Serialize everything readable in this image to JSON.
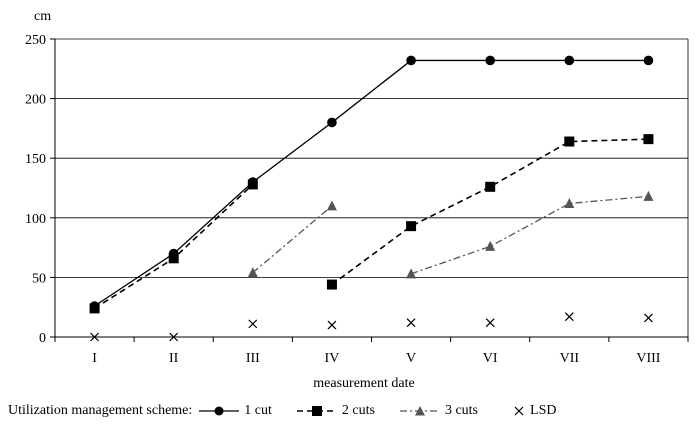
{
  "chart_data": {
    "type": "line",
    "ylabel": "cm",
    "xlabel": "measurement date",
    "categories": [
      "I",
      "II",
      "III",
      "IV",
      "V",
      "VI",
      "VII",
      "VIII"
    ],
    "ylim": [
      0,
      250
    ],
    "yticks": [
      0,
      50,
      100,
      150,
      200,
      250
    ],
    "grid": "horizontal",
    "legend_position": "bottom",
    "legend_title": "Utilization management scheme:",
    "series": [
      {
        "name": "1 cut",
        "marker": "circle",
        "line": "solid",
        "color": "#000000",
        "values": [
          26,
          70,
          130,
          180,
          232,
          232,
          232,
          232
        ]
      },
      {
        "name": "2 cuts",
        "marker": "square",
        "line": "dashed",
        "color": "#000000",
        "values": [
          24,
          66,
          128,
          null,
          null,
          null,
          null,
          null
        ],
        "segments": [
          [
            24,
            66,
            128,
            null,
            null,
            null,
            null,
            null
          ],
          [
            null,
            null,
            null,
            44,
            93,
            126,
            164,
            166
          ]
        ]
      },
      {
        "name": "3 cuts",
        "marker": "triangle",
        "line": "dashdot",
        "color": "#555555",
        "segments": [
          [
            null,
            null,
            54,
            110,
            null,
            null,
            null,
            null
          ],
          [
            null,
            null,
            null,
            null,
            53,
            76,
            112,
            118
          ]
        ]
      },
      {
        "name": "LSD",
        "marker": "x",
        "line": "none",
        "color": "#000000",
        "values": [
          0,
          0,
          11,
          10,
          12,
          12,
          17,
          16
        ]
      }
    ]
  }
}
